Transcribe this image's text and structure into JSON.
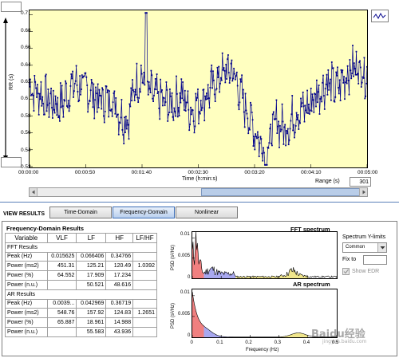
{
  "rr_plot": {
    "y_ticks": [
      "0.7",
      "0.68",
      "0.66",
      "0.64",
      "0.62",
      "0.6",
      "0.58",
      "0.56",
      "0.54",
      "0.52"
    ],
    "ylabel": "RR (s)",
    "x_ticks": [
      "00:00:00",
      "00:00:50",
      "00:01:40",
      "00:02:30",
      "00:03:20",
      "00:04:10",
      "00:05:00"
    ],
    "xlabel": "Time (h:min:s)",
    "range_label": "Range (s)",
    "range_value": "301",
    "colors": {
      "background": "#ffffc0",
      "series": "#00008b"
    }
  },
  "view_results": {
    "label": "VIEW RESULTS",
    "tabs": [
      {
        "label": "Time-Domain"
      },
      {
        "label": "Frequency-Domain"
      },
      {
        "label": "Nonlinear"
      }
    ]
  },
  "results": {
    "title": "Frequency-Domain Results",
    "headers": [
      "Variable",
      "VLF",
      "LF",
      "HF",
      "LF/HF"
    ],
    "sections": [
      {
        "name": "FFT Results",
        "rows": [
          {
            "label": "Peak (Hz)",
            "values": [
              "0.015625",
              "0.066406",
              "0.34766",
              ""
            ]
          },
          {
            "label": "Power (ms2)",
            "values": [
              "451.31",
              "125.21",
              "120.49",
              "1.0392"
            ]
          },
          {
            "label": "Power (%)",
            "values": [
              "64.552",
              "17.909",
              "17.234",
              ""
            ]
          },
          {
            "label": "Power (n.u.)",
            "values": [
              "",
              "50.521",
              "48.616",
              ""
            ]
          }
        ]
      },
      {
        "name": "AR Results",
        "rows": [
          {
            "label": "Peak (Hz)",
            "values": [
              "0.0039...",
              "0.042969",
              "0.36719",
              ""
            ]
          },
          {
            "label": "Power (ms2)",
            "values": [
              "548.76",
              "157.92",
              "124.83",
              "1.2651"
            ]
          },
          {
            "label": "Power (%)",
            "values": [
              "65.887",
              "18.961",
              "14.988",
              ""
            ]
          },
          {
            "label": "Power (n.u.)",
            "values": [
              "",
              "55.583",
              "43.936",
              ""
            ]
          }
        ]
      }
    ]
  },
  "fft_plot": {
    "title": "FFT spectrum",
    "ylabel": "PSD (s²/Hz)",
    "y_ticks": [
      "0.01",
      "0.005",
      "0"
    ]
  },
  "ar_plot": {
    "title": "AR spectrum",
    "ylabel": "PSD (s²/Hz)",
    "y_ticks": [
      "0.01",
      "0.005",
      "0"
    ],
    "x_ticks": [
      "0",
      "0.1",
      "0.2",
      "0.3",
      "0.4",
      "0.5"
    ],
    "xlabel": "Frequency (Hz)"
  },
  "spectrum_controls": {
    "ylimits_label": "Spectrum Y-limits",
    "mode_value": "Common",
    "fix_to_label": "Fix to",
    "fix_to_value": "",
    "show_edr_label": "Show EDR"
  },
  "watermark": {
    "text": "Baidu经验",
    "subtext": "jingyan.baidu.com"
  },
  "band_colors": {
    "vlf": "#f08080",
    "lf": "#a9a9f0",
    "hf": "#f0e68c"
  }
}
